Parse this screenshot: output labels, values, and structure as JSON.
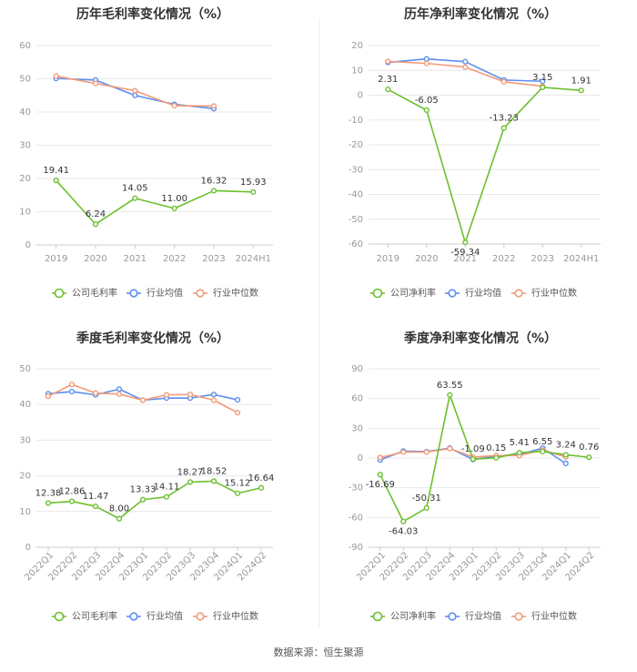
{
  "source_text": "数据来源：恒生聚源",
  "colors": {
    "company": "#6cc02d",
    "industry_avg": "#5b8ff0",
    "industry_median": "#f39a79",
    "grid": "#e8e8e8",
    "axis_text": "#999999",
    "label_text": "#333333"
  },
  "chart_data": [
    {
      "type": "line",
      "title": "历年毛利率变化情况（%）",
      "categories": [
        "2019",
        "2020",
        "2021",
        "2022",
        "2023",
        "2024H1"
      ],
      "ylim": [
        0,
        60
      ],
      "yticks": [
        0,
        10,
        20,
        30,
        40,
        50,
        60
      ],
      "ytick_labels": [
        "0",
        "10",
        "20",
        "30",
        "40",
        "50",
        "60"
      ],
      "rotate_x": false,
      "grid": true,
      "legend_position": "bottom",
      "series": [
        {
          "name": "公司毛利率",
          "color_key": "company",
          "values": [
            19.41,
            6.24,
            14.05,
            11.0,
            16.32,
            15.93
          ],
          "labels": [
            "19.41",
            "6.24",
            "14.05",
            "11.00",
            "16.32",
            "15.93"
          ]
        },
        {
          "name": "行业均值",
          "color_key": "industry_avg",
          "values": [
            50.1,
            49.6,
            45.0,
            42.3,
            41.0,
            null
          ]
        },
        {
          "name": "行业中位数",
          "color_key": "industry_median",
          "values": [
            50.8,
            48.6,
            46.4,
            41.9,
            41.8,
            null
          ]
        }
      ]
    },
    {
      "type": "line",
      "title": "历年净利率变化情况（%）",
      "categories": [
        "2019",
        "2020",
        "2021",
        "2022",
        "2023",
        "2024H1"
      ],
      "ylim": [
        -60,
        20
      ],
      "yticks": [
        -60,
        -50,
        -40,
        -30,
        -20,
        -10,
        0,
        10,
        20
      ],
      "ytick_labels": [
        "-60",
        "-50",
        "-40",
        "-30",
        "-20",
        "-10",
        "0",
        "10",
        "20"
      ],
      "rotate_x": false,
      "grid": true,
      "legend_position": "bottom",
      "series": [
        {
          "name": "公司净利率",
          "color_key": "company",
          "values": [
            2.31,
            -6.05,
            -59.34,
            -13.23,
            3.15,
            1.91
          ],
          "labels": [
            "2.31",
            "-6.05",
            "-59.34",
            "-13.23",
            "3.15",
            "1.91"
          ]
        },
        {
          "name": "行业均值",
          "color_key": "industry_avg",
          "values": [
            13.2,
            14.6,
            13.5,
            6.1,
            5.6,
            null
          ]
        },
        {
          "name": "行业中位数",
          "color_key": "industry_median",
          "values": [
            13.6,
            12.8,
            11.3,
            5.4,
            3.6,
            null
          ]
        }
      ]
    },
    {
      "type": "line",
      "title": "季度毛利率变化情况（%）",
      "categories": [
        "2022Q1",
        "2022Q2",
        "2022Q3",
        "2022Q4",
        "2023Q1",
        "2023Q2",
        "2023Q3",
        "2023Q4",
        "2024Q1",
        "2024Q2"
      ],
      "ylim": [
        0,
        50
      ],
      "yticks": [
        0,
        10,
        20,
        30,
        40,
        50
      ],
      "ytick_labels": [
        "0",
        "10",
        "20",
        "30",
        "40",
        "50"
      ],
      "rotate_x": true,
      "grid": true,
      "legend_position": "bottom",
      "series": [
        {
          "name": "公司毛利率",
          "color_key": "company",
          "values": [
            12.38,
            12.86,
            11.47,
            8.0,
            13.33,
            14.11,
            18.27,
            18.52,
            15.12,
            16.64
          ],
          "labels": [
            "12.38",
            "12.86",
            "11.47",
            "8.00",
            "13.33",
            "14.11",
            "18.27",
            "18.52",
            "15.12",
            "16.64"
          ]
        },
        {
          "name": "行业均值",
          "color_key": "industry_avg",
          "values": [
            43.0,
            43.6,
            42.7,
            44.3,
            41.2,
            41.8,
            41.8,
            42.8,
            41.3,
            null
          ]
        },
        {
          "name": "行业中位数",
          "color_key": "industry_median",
          "values": [
            42.3,
            45.6,
            43.2,
            42.9,
            41.2,
            42.7,
            42.8,
            41.2,
            37.7,
            null
          ]
        }
      ]
    },
    {
      "type": "line",
      "title": "季度净利率变化情况（%）",
      "categories": [
        "2022Q1",
        "2022Q2",
        "2022Q3",
        "2022Q4",
        "2023Q1",
        "2023Q2",
        "2023Q3",
        "2023Q4",
        "2024Q1",
        "2024Q2"
      ],
      "ylim": [
        -90,
        90
      ],
      "yticks": [
        -90,
        -60,
        -30,
        0,
        30,
        60,
        90
      ],
      "ytick_labels": [
        "-90",
        "-60",
        "-30",
        "0",
        "30",
        "60",
        "90"
      ],
      "rotate_x": true,
      "grid": true,
      "legend_position": "bottom",
      "series": [
        {
          "name": "公司净利率",
          "color_key": "company",
          "values": [
            -16.69,
            -64.03,
            -50.31,
            63.55,
            -1.09,
            0.15,
            5.41,
            6.55,
            3.24,
            0.76
          ],
          "labels": [
            "-16.69",
            "-64.03",
            "-50.31",
            "63.55",
            "-1.09",
            "0.15",
            "5.41",
            "6.55",
            "3.24",
            "0.76"
          ]
        },
        {
          "name": "行业均值",
          "color_key": "industry_avg",
          "values": [
            -2.0,
            7.0,
            6.5,
            10.0,
            -1.5,
            2.0,
            3.5,
            10.0,
            -5.5,
            null
          ]
        },
        {
          "name": "行业中位数",
          "color_key": "industry_median",
          "values": [
            0.5,
            6.0,
            6.0,
            9.5,
            1.0,
            2.5,
            2.5,
            8.0,
            1.0,
            null
          ]
        }
      ]
    }
  ]
}
